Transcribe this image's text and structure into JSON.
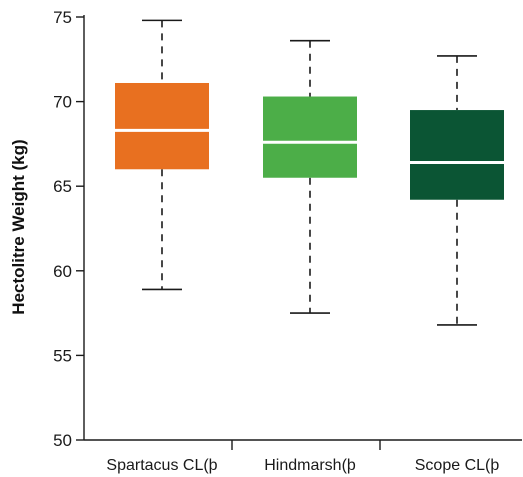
{
  "chart_data": {
    "type": "box",
    "title": "",
    "xlabel": "",
    "ylabel": "Hectolitre Weight (kg)",
    "ylim": [
      50,
      75
    ],
    "yticks": [
      50,
      55,
      60,
      65,
      70,
      75
    ],
    "grid": false,
    "legend": "none",
    "series": [
      {
        "category": "Spartacus CL&#8203;(þ",
        "label": "Spartacus CL(þ",
        "color": "#E87020",
        "min": 58.9,
        "q1": 66.0,
        "median": 68.3,
        "q3": 71.1,
        "max": 74.8
      },
      {
        "category": "Hindmarsh(þ",
        "label": "Hindmarsh(þ",
        "color": "#4CAE48",
        "min": 57.5,
        "q1": 65.5,
        "median": 67.6,
        "q3": 70.3,
        "max": 73.6
      },
      {
        "category": "Scope CL(þ",
        "label": "Scope CL(þ",
        "color": "#0B5534",
        "min": 56.8,
        "q1": 64.2,
        "median": 66.4,
        "q3": 69.5,
        "max": 72.7
      }
    ]
  }
}
